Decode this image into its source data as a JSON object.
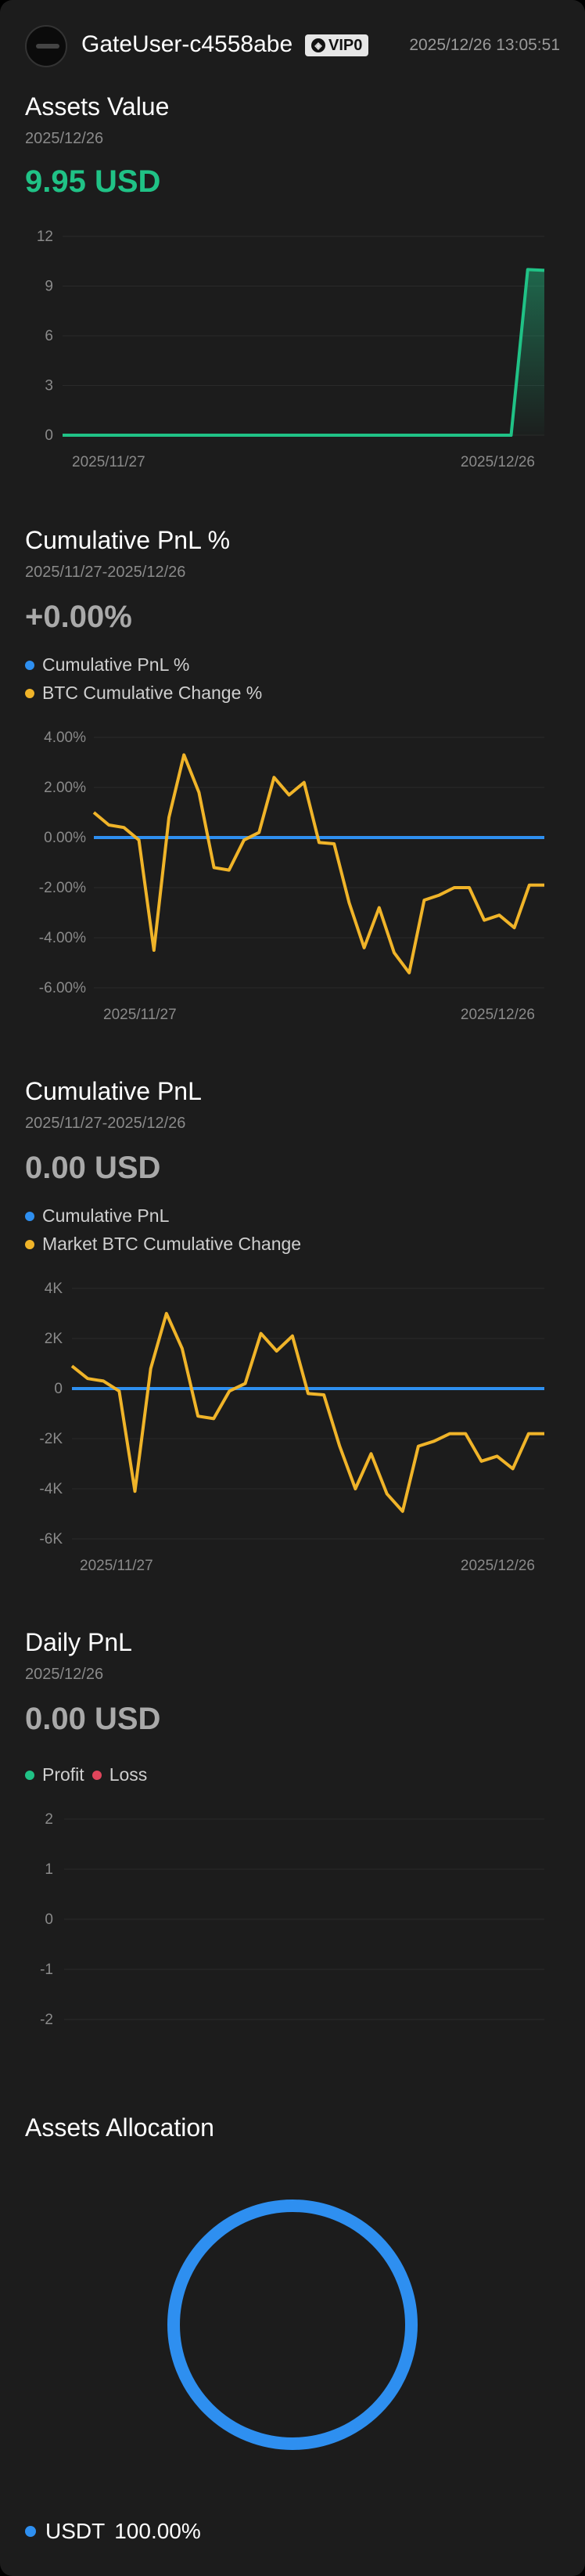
{
  "header": {
    "username": "GateUser-c4558abe",
    "vip_label": "VIP0",
    "timestamp": "2025/12/26 13:05:51",
    "avatar_icon": "avatar-icon"
  },
  "colors": {
    "green": "#20c286",
    "blue": "#2e8ff0",
    "yellow": "#f0b429",
    "red": "#e0455b",
    "background": "#1c1c1c"
  },
  "assets_value": {
    "title": "Assets Value",
    "date": "2025/12/26",
    "value": "9.95 USD",
    "chart_data": {
      "type": "area",
      "ylim": [
        0,
        12
      ],
      "yticks": [
        "0",
        "3",
        "6",
        "9",
        "12"
      ],
      "x_labels": [
        "2025/11/27",
        "2025/12/26"
      ],
      "x": [
        "2025/11/27",
        "2025/11/28",
        "2025/11/29",
        "2025/11/30",
        "2025/12/01",
        "2025/12/02",
        "2025/12/03",
        "2025/12/04",
        "2025/12/05",
        "2025/12/06",
        "2025/12/07",
        "2025/12/08",
        "2025/12/09",
        "2025/12/10",
        "2025/12/11",
        "2025/12/12",
        "2025/12/13",
        "2025/12/14",
        "2025/12/15",
        "2025/12/16",
        "2025/12/17",
        "2025/12/18",
        "2025/12/19",
        "2025/12/20",
        "2025/12/21",
        "2025/12/22",
        "2025/12/23",
        "2025/12/24",
        "2025/12/25",
        "2025/12/26"
      ],
      "values": [
        0,
        0,
        0,
        0,
        0,
        0,
        0,
        0,
        0,
        0,
        0,
        0,
        0,
        0,
        0,
        0,
        0,
        0,
        0,
        0,
        0,
        0,
        0,
        0,
        0,
        0,
        0,
        0,
        10.0,
        9.95
      ],
      "color": "#20c286"
    }
  },
  "cum_pnl_pct": {
    "title": "Cumulative PnL %",
    "date_range": "2025/11/27-2025/12/26",
    "value": "+0.00%",
    "legend": [
      "Cumulative PnL %",
      "BTC Cumulative Change %"
    ],
    "chart_data": {
      "type": "line",
      "ylim": [
        -6,
        4
      ],
      "yticks": [
        "-6.00%",
        "-4.00%",
        "-2.00%",
        "0.00%",
        "2.00%",
        "4.00%"
      ],
      "x_labels": [
        "2025/11/27",
        "2025/12/26"
      ],
      "series": [
        {
          "name": "Cumulative PnL %",
          "color": "#2e8ff0",
          "values": [
            0,
            0,
            0,
            0,
            0,
            0,
            0,
            0,
            0,
            0,
            0,
            0,
            0,
            0,
            0,
            0,
            0,
            0,
            0,
            0,
            0,
            0,
            0,
            0,
            0,
            0,
            0,
            0,
            0,
            0,
            0
          ]
        },
        {
          "name": "BTC Cumulative Change %",
          "color": "#f0b429",
          "values": [
            1.0,
            0.5,
            0.4,
            -0.1,
            -4.5,
            0.8,
            3.3,
            1.8,
            -1.2,
            -1.3,
            -0.1,
            0.2,
            2.4,
            1.7,
            2.2,
            -0.2,
            -0.25,
            -2.6,
            -4.4,
            -2.8,
            -4.6,
            -5.4,
            -2.5,
            -2.3,
            -2.0,
            -2.0,
            -3.3,
            -3.1,
            -3.6,
            -1.9,
            -1.9
          ]
        }
      ]
    }
  },
  "cum_pnl": {
    "title": "Cumulative PnL",
    "date_range": "2025/11/27-2025/12/26",
    "value": "0.00 USD",
    "legend": [
      "Cumulative PnL",
      "Market BTC Cumulative Change"
    ],
    "chart_data": {
      "type": "line",
      "ylim": [
        -6000,
        4000
      ],
      "yticks": [
        "-6K",
        "-4K",
        "-2K",
        "0",
        "2K",
        "4K"
      ],
      "x_labels": [
        "2025/11/27",
        "2025/12/26"
      ],
      "series": [
        {
          "name": "Cumulative PnL",
          "color": "#2e8ff0",
          "values": [
            0,
            0,
            0,
            0,
            0,
            0,
            0,
            0,
            0,
            0,
            0,
            0,
            0,
            0,
            0,
            0,
            0,
            0,
            0,
            0,
            0,
            0,
            0,
            0,
            0,
            0,
            0,
            0,
            0,
            0,
            0
          ]
        },
        {
          "name": "Market BTC Cumulative Change",
          "color": "#f0b429",
          "values": [
            900,
            400,
            300,
            -100,
            -4100,
            800,
            3000,
            1600,
            -1100,
            -1200,
            -100,
            200,
            2200,
            1500,
            2100,
            -200,
            -250,
            -2300,
            -4000,
            -2600,
            -4200,
            -4900,
            -2300,
            -2100,
            -1800,
            -1800,
            -2900,
            -2700,
            -3200,
            -1800,
            -1800
          ]
        }
      ]
    }
  },
  "daily_pnl": {
    "title": "Daily PnL",
    "date": "2025/12/26",
    "value": "0.00 USD",
    "legend": [
      "Profit",
      "Loss"
    ],
    "chart_data": {
      "type": "bar",
      "ylim": [
        -2,
        2
      ],
      "yticks": [
        "-2",
        "-1",
        "0",
        "1",
        "2"
      ],
      "x_labels": [
        "2025/12/26"
      ],
      "categories": [
        "2025/12/26"
      ],
      "values": [
        0
      ]
    }
  },
  "allocation": {
    "title": "Assets Allocation",
    "chart_data": {
      "type": "pie",
      "slices": [
        {
          "name": "USDT",
          "value": 100.0,
          "color": "#2e8ff0"
        }
      ]
    },
    "legend_asset": "USDT",
    "legend_pct": "100.00%"
  }
}
